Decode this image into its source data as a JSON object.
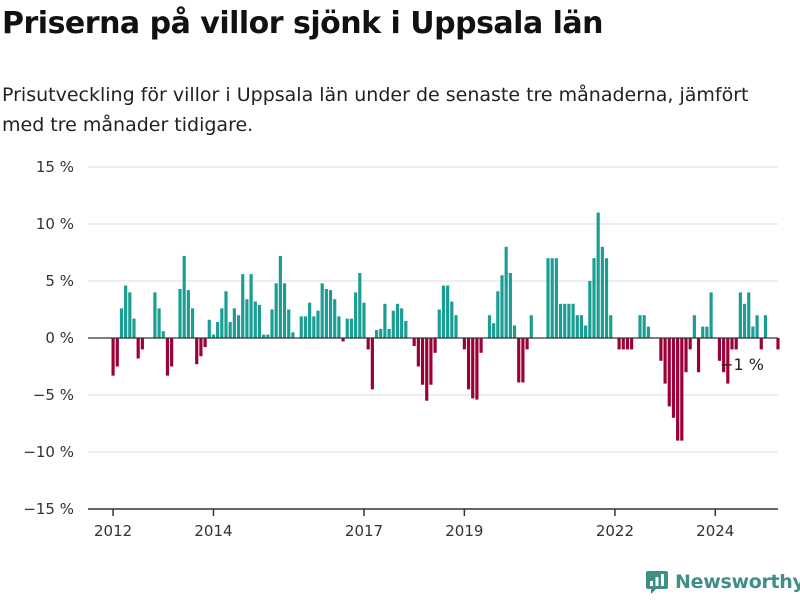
{
  "chart_data": {
    "type": "bar",
    "title": "Priserna på villor sjönk i Uppsala län",
    "subtitle": "Prisutveckling för villor i Uppsala län under de senaste tre månaderna, jämfört med tre månader tidigare.",
    "ylim": [
      -15,
      15
    ],
    "yticks": [
      15,
      10,
      5,
      0,
      -5,
      -10,
      -15
    ],
    "ytick_labels": [
      "15 %",
      "10 %",
      "5 %",
      "0 %",
      "−5 %",
      "−10 %",
      "−15 %"
    ],
    "xlim": [
      2011.5,
      2025.25
    ],
    "xticks": [
      2012,
      2014,
      2017,
      2019,
      2022,
      2024
    ],
    "xtick_labels": [
      "2012",
      "2014",
      "2017",
      "2019",
      "2022",
      "2024"
    ],
    "grid": true,
    "positive_color": "#1a9e93",
    "negative_color": "#9b0039",
    "x_start": 2012.0,
    "x_step": 0.0833333,
    "values": [
      -3.3,
      -2.5,
      2.6,
      4.6,
      4.0,
      1.7,
      -1.8,
      -1.0,
      0,
      0,
      4.0,
      2.6,
      0.6,
      -3.3,
      -2.5,
      0,
      4.3,
      7.2,
      4.2,
      2.6,
      -2.3,
      -1.6,
      -0.8,
      1.6,
      0.3,
      1.4,
      2.6,
      4.1,
      1.4,
      2.6,
      2.0,
      5.6,
      3.4,
      5.6,
      3.2,
      2.9,
      0.3,
      0.3,
      2.5,
      4.8,
      7.2,
      4.8,
      2.5,
      0.5,
      0,
      1.9,
      1.9,
      3.1,
      1.9,
      2.4,
      4.8,
      4.3,
      4.2,
      3.4,
      1.9,
      -0.3,
      1.7,
      1.7,
      4.0,
      5.7,
      3.1,
      -1.0,
      -4.5,
      0.7,
      0.8,
      3.0,
      0.8,
      2.4,
      3.0,
      2.6,
      1.5,
      0,
      -0.7,
      -2.5,
      -4.1,
      -5.5,
      -4.1,
      -1.3,
      2.5,
      4.6,
      4.6,
      3.2,
      2.0,
      0,
      -1.0,
      -4.5,
      -5.3,
      -5.4,
      -1.3,
      0,
      2.0,
      1.3,
      4.1,
      5.5,
      8.0,
      5.7,
      1.1,
      -3.9,
      -3.9,
      -1.0,
      2.0,
      0,
      0,
      0,
      7.0,
      7.0,
      7.0,
      3.0,
      3.0,
      3.0,
      3.0,
      2.0,
      2.0,
      1.1,
      5.0,
      7.0,
      11.0,
      8.0,
      7.0,
      2.0,
      0,
      -1.0,
      -1.0,
      -1.0,
      -1.0,
      0,
      2.0,
      2.0,
      1.0,
      0,
      0,
      -2.0,
      -4.0,
      -6.0,
      -7.0,
      -9.0,
      -9.0,
      -3.0,
      -1.0,
      2.0,
      -3.0,
      1.0,
      1.0,
      4.0,
      0,
      -2.0,
      -3.0,
      -4.0,
      -1.0,
      -1.0,
      4.0,
      3.0,
      4.0,
      1.0,
      2.0,
      -1.0,
      2.0,
      0,
      0,
      -1.0
    ],
    "annotations": [
      {
        "text": "−1 %"
      }
    ]
  },
  "brand": {
    "name": "Newsworthy",
    "icon": "newsworthy-logo-icon"
  }
}
